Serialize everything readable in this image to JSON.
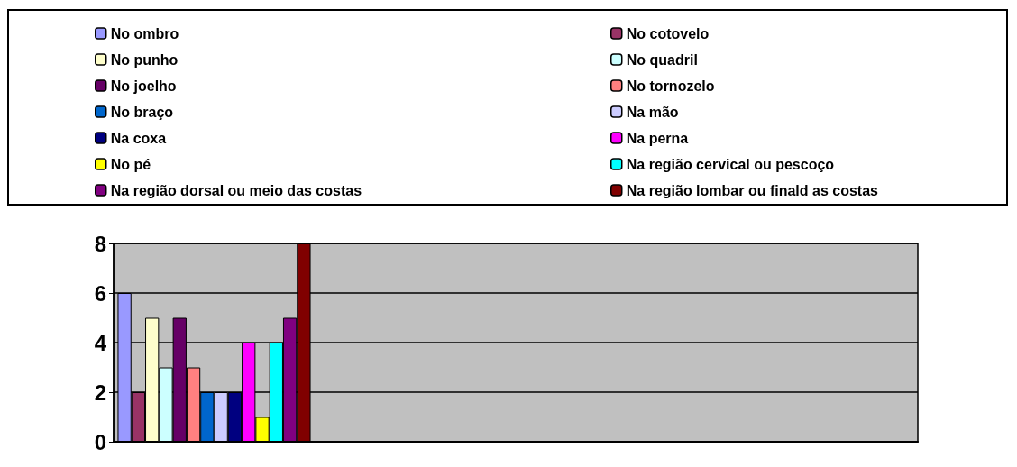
{
  "chart_data": {
    "type": "bar",
    "categories": [
      null,
      null,
      null,
      null
    ],
    "series": [
      {
        "name": "No ombro",
        "color": "#9999ff",
        "values": [
          6,
          null,
          null,
          null
        ]
      },
      {
        "name": "No cotovelo",
        "color": "#993366",
        "values": [
          2,
          null,
          null,
          null
        ]
      },
      {
        "name": "No punho",
        "color": "#ffffcc",
        "values": [
          5,
          null,
          null,
          null
        ]
      },
      {
        "name": "No quadril",
        "color": "#ccffff",
        "values": [
          3,
          null,
          null,
          null
        ]
      },
      {
        "name": "No joelho",
        "color": "#660066",
        "values": [
          5,
          null,
          null,
          null
        ]
      },
      {
        "name": "No tornozelo",
        "color": "#ff8080",
        "values": [
          3,
          null,
          null,
          null
        ]
      },
      {
        "name": "No braço",
        "color": "#0066cc",
        "values": [
          2,
          null,
          null,
          null
        ]
      },
      {
        "name": "Na mão",
        "color": "#ccccff",
        "values": [
          2,
          null,
          null,
          null
        ]
      },
      {
        "name": "Na coxa",
        "color": "#000080",
        "values": [
          2,
          null,
          null,
          null
        ]
      },
      {
        "name": "Na perna",
        "color": "#ff00ff",
        "values": [
          4,
          null,
          null,
          null
        ]
      },
      {
        "name": "No pé",
        "color": "#ffff00",
        "values": [
          1,
          null,
          null,
          null
        ]
      },
      {
        "name": "Na região cervical ou pescoço",
        "color": "#00ffff",
        "values": [
          4,
          null,
          null,
          null
        ]
      },
      {
        "name": "Na região dorsal ou meio das costas",
        "color": "#800080",
        "values": [
          5,
          null,
          null,
          null
        ]
      },
      {
        "name": "Na região lombar ou finald as costas",
        "color": "#800000",
        "values": [
          8,
          null,
          null,
          null
        ]
      }
    ],
    "ylim": [
      0,
      8
    ],
    "yticks": [
      0,
      2,
      4,
      6,
      8
    ],
    "grid": "y",
    "legend": "top",
    "tick_labels": "y"
  }
}
